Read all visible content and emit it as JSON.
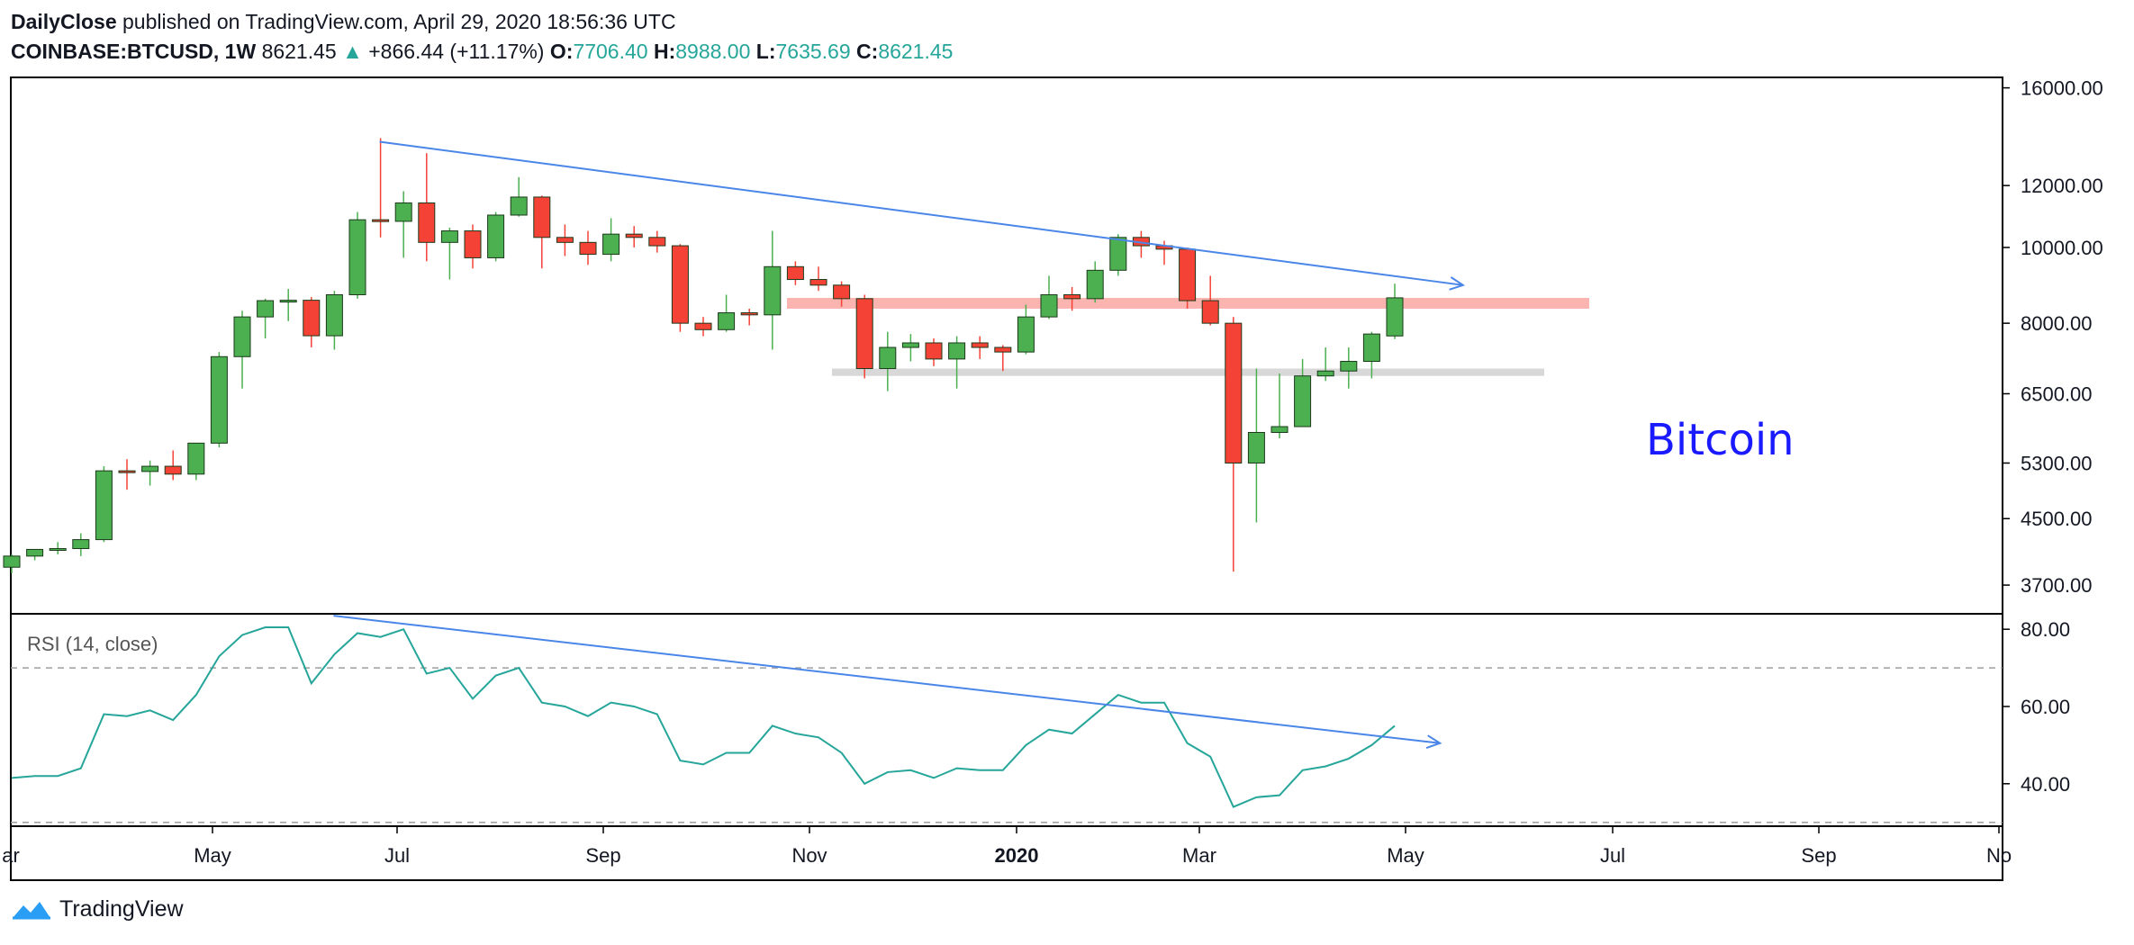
{
  "header": {
    "author": "DailyClose",
    "published": "published on TradingView.com, April 29, 2020 18:56:36 UTC",
    "symbol": "COINBASE:BTCUSD, 1W",
    "last": "8621.45",
    "change_arrow": "▲",
    "change": "+866.44 (+11.17%)",
    "o_label": "O:",
    "o_value": "7706.40",
    "h_label": "H:",
    "h_value": "8988.00",
    "l_label": "L:",
    "l_value": "7635.69",
    "c_label": "C:",
    "c_value": "8621.45"
  },
  "footer": {
    "brand": "TradingView",
    "logo_icon": "tradingview-logo-icon"
  },
  "colors": {
    "up": "#4caf50",
    "down": "#f44336",
    "rsi": "#26a69a",
    "trend": "#4a86e8",
    "text_annotation": "#1a1aff"
  },
  "chart_data": [
    {
      "type": "candlestick",
      "symbol": "COINBASE:BTCUSD",
      "interval": "1W",
      "scale": "log",
      "ylim": [
        3400,
        16500
      ],
      "yticks": [
        "16000.00",
        "12000.00",
        "10000.00",
        "8000.00",
        "6500.00",
        "5300.00",
        "4500.00",
        "3700.00"
      ],
      "xticks": [
        "ar",
        "May",
        "Jul",
        "Sep",
        "Nov",
        "2020",
        "Mar",
        "May",
        "Jul",
        "Sep",
        "No"
      ],
      "annotation": "Bitcoin",
      "candles": [
        {
          "o": 3900,
          "h": 4050,
          "l": 3830,
          "c": 4030
        },
        {
          "o": 4030,
          "h": 4100,
          "l": 3980,
          "c": 4110
        },
        {
          "o": 4110,
          "h": 4200,
          "l": 4050,
          "c": 4120
        },
        {
          "o": 4120,
          "h": 4310,
          "l": 4030,
          "c": 4230
        },
        {
          "o": 4230,
          "h": 5250,
          "l": 4200,
          "c": 5180
        },
        {
          "o": 5180,
          "h": 5360,
          "l": 4900,
          "c": 5170
        },
        {
          "o": 5170,
          "h": 5340,
          "l": 4960,
          "c": 5250
        },
        {
          "o": 5250,
          "h": 5500,
          "l": 5040,
          "c": 5130
        },
        {
          "o": 5130,
          "h": 5600,
          "l": 5040,
          "c": 5620
        },
        {
          "o": 5620,
          "h": 7350,
          "l": 5550,
          "c": 7250
        },
        {
          "o": 7250,
          "h": 8300,
          "l": 6600,
          "c": 8150
        },
        {
          "o": 8150,
          "h": 8600,
          "l": 7650,
          "c": 8550
        },
        {
          "o": 8550,
          "h": 8850,
          "l": 8050,
          "c": 8560
        },
        {
          "o": 8560,
          "h": 8640,
          "l": 7450,
          "c": 7710
        },
        {
          "o": 7710,
          "h": 8800,
          "l": 7400,
          "c": 8700
        },
        {
          "o": 8700,
          "h": 11100,
          "l": 8600,
          "c": 10850
        },
        {
          "o": 10850,
          "h": 13800,
          "l": 10300,
          "c": 10800
        },
        {
          "o": 10800,
          "h": 11800,
          "l": 9700,
          "c": 11400
        },
        {
          "o": 11400,
          "h": 13200,
          "l": 9600,
          "c": 10150
        },
        {
          "o": 10150,
          "h": 10600,
          "l": 9100,
          "c": 10500
        },
        {
          "o": 10500,
          "h": 10700,
          "l": 9400,
          "c": 9700
        },
        {
          "o": 9700,
          "h": 11100,
          "l": 9600,
          "c": 11000
        },
        {
          "o": 11000,
          "h": 12300,
          "l": 10950,
          "c": 11600
        },
        {
          "o": 11600,
          "h": 11650,
          "l": 9400,
          "c": 10300
        },
        {
          "o": 10300,
          "h": 10700,
          "l": 9750,
          "c": 10150
        },
        {
          "o": 10150,
          "h": 10500,
          "l": 9500,
          "c": 9800
        },
        {
          "o": 9800,
          "h": 10900,
          "l": 9600,
          "c": 10400
        },
        {
          "o": 10400,
          "h": 10650,
          "l": 10000,
          "c": 10300
        },
        {
          "o": 10300,
          "h": 10500,
          "l": 9850,
          "c": 10050
        },
        {
          "o": 10050,
          "h": 10100,
          "l": 7800,
          "c": 8000
        },
        {
          "o": 8000,
          "h": 8150,
          "l": 7700,
          "c": 7850
        },
        {
          "o": 7850,
          "h": 8700,
          "l": 7800,
          "c": 8250
        },
        {
          "o": 8250,
          "h": 8350,
          "l": 7950,
          "c": 8200
        },
        {
          "o": 8200,
          "h": 10500,
          "l": 7400,
          "c": 9450
        },
        {
          "o": 9450,
          "h": 9600,
          "l": 8950,
          "c": 9100
        },
        {
          "o": 9100,
          "h": 9450,
          "l": 8800,
          "c": 8950
        },
        {
          "o": 8950,
          "h": 9050,
          "l": 8400,
          "c": 8600
        },
        {
          "o": 8600,
          "h": 8700,
          "l": 6800,
          "c": 7000
        },
        {
          "o": 7000,
          "h": 7800,
          "l": 6550,
          "c": 7450
        },
        {
          "o": 7450,
          "h": 7750,
          "l": 7150,
          "c": 7550
        },
        {
          "o": 7550,
          "h": 7650,
          "l": 7050,
          "c": 7200
        },
        {
          "o": 7200,
          "h": 7700,
          "l": 6600,
          "c": 7550
        },
        {
          "o": 7550,
          "h": 7700,
          "l": 7200,
          "c": 7450
        },
        {
          "o": 7450,
          "h": 7500,
          "l": 6950,
          "c": 7350
        },
        {
          "o": 7350,
          "h": 8450,
          "l": 7300,
          "c": 8150
        },
        {
          "o": 8150,
          "h": 9200,
          "l": 8100,
          "c": 8700
        },
        {
          "o": 8700,
          "h": 8900,
          "l": 8300,
          "c": 8600
        },
        {
          "o": 8600,
          "h": 9600,
          "l": 8500,
          "c": 9350
        },
        {
          "o": 9350,
          "h": 10400,
          "l": 9200,
          "c": 10300
        },
        {
          "o": 10300,
          "h": 10500,
          "l": 9700,
          "c": 10050
        },
        {
          "o": 10050,
          "h": 10200,
          "l": 9500,
          "c": 9950
        },
        {
          "o": 9950,
          "h": 10000,
          "l": 8350,
          "c": 8550
        },
        {
          "o": 8550,
          "h": 9200,
          "l": 7950,
          "c": 8000
        },
        {
          "o": 8000,
          "h": 8150,
          "l": 3850,
          "c": 5300
        },
        {
          "o": 5300,
          "h": 7000,
          "l": 4450,
          "c": 5800
        },
        {
          "o": 5800,
          "h": 6900,
          "l": 5700,
          "c": 5900
        },
        {
          "o": 5900,
          "h": 7200,
          "l": 5900,
          "c": 6850
        },
        {
          "o": 6850,
          "h": 7450,
          "l": 6750,
          "c": 6950
        },
        {
          "o": 6950,
          "h": 7450,
          "l": 6600,
          "c": 7150
        },
        {
          "o": 7150,
          "h": 7800,
          "l": 6800,
          "c": 7750
        },
        {
          "o": 7706.4,
          "h": 8988.0,
          "l": 7635.69,
          "c": 8621.45
        }
      ],
      "resistance_zone": {
        "low": 8350,
        "high": 8620,
        "color": "#f44336"
      },
      "support_zone": {
        "low": 6850,
        "high": 7000,
        "color": "#9e9e9e"
      },
      "trendline": {
        "from": {
          "date": "2019-07-21",
          "value": 13650
        },
        "to": {
          "date": "2020-06-14",
          "value": 8950
        }
      }
    },
    {
      "type": "line",
      "title": "RSI (14, close)",
      "ylim": [
        29,
        84
      ],
      "yticks": [
        "80.00",
        "60.00",
        "40.00"
      ],
      "bands": [
        70,
        30
      ],
      "values": [
        41.5,
        42,
        42,
        44,
        58,
        57.5,
        59,
        56.5,
        63,
        73,
        78.5,
        80.5,
        80.5,
        66,
        73.5,
        79,
        78,
        80,
        68.5,
        70,
        62,
        68,
        70,
        61,
        60,
        57.5,
        61,
        60,
        58,
        46,
        45,
        48,
        48,
        55,
        53,
        52,
        48,
        40,
        43,
        43.5,
        41.5,
        44,
        43.5,
        43.5,
        50,
        54,
        53,
        58,
        63,
        61,
        61,
        50.5,
        47,
        34,
        36.5,
        37,
        43.5,
        44.5,
        46.5,
        50,
        55
      ],
      "trendline": {
        "from": {
          "date": "2019-07-07",
          "value": 83.5
        },
        "to": {
          "date": "2020-06-07",
          "value": 50.5
        }
      }
    }
  ]
}
